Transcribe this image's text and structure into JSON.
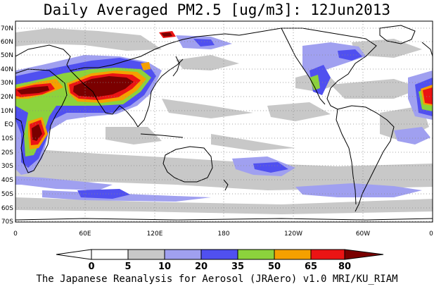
{
  "title": "Daily Averaged PM2.5 [ug/m3]: 12Jun2013",
  "credit": "The Japanese Reanalysis for Aerosol (JRAero) v1.0 MRI/KU_RIAM",
  "lat_labels": [
    "70N",
    "60N",
    "50N",
    "40N",
    "30N",
    "20N",
    "10N",
    "EQ",
    "10S",
    "20S",
    "30S",
    "40S",
    "50S",
    "60S",
    "70S"
  ],
  "lon_labels": [
    "0",
    "60E",
    "120E",
    "180",
    "120W",
    "60W",
    "0"
  ],
  "colorbar": {
    "levels": [
      "0",
      "5",
      "10",
      "20",
      "35",
      "50",
      "65",
      "80"
    ],
    "colors": [
      "#ffffff",
      "#c8c8c8",
      "#a0a0f0",
      "#5050f0",
      "#8cd23c",
      "#f5a000",
      "#eb1414",
      "#7a0000"
    ]
  }
}
